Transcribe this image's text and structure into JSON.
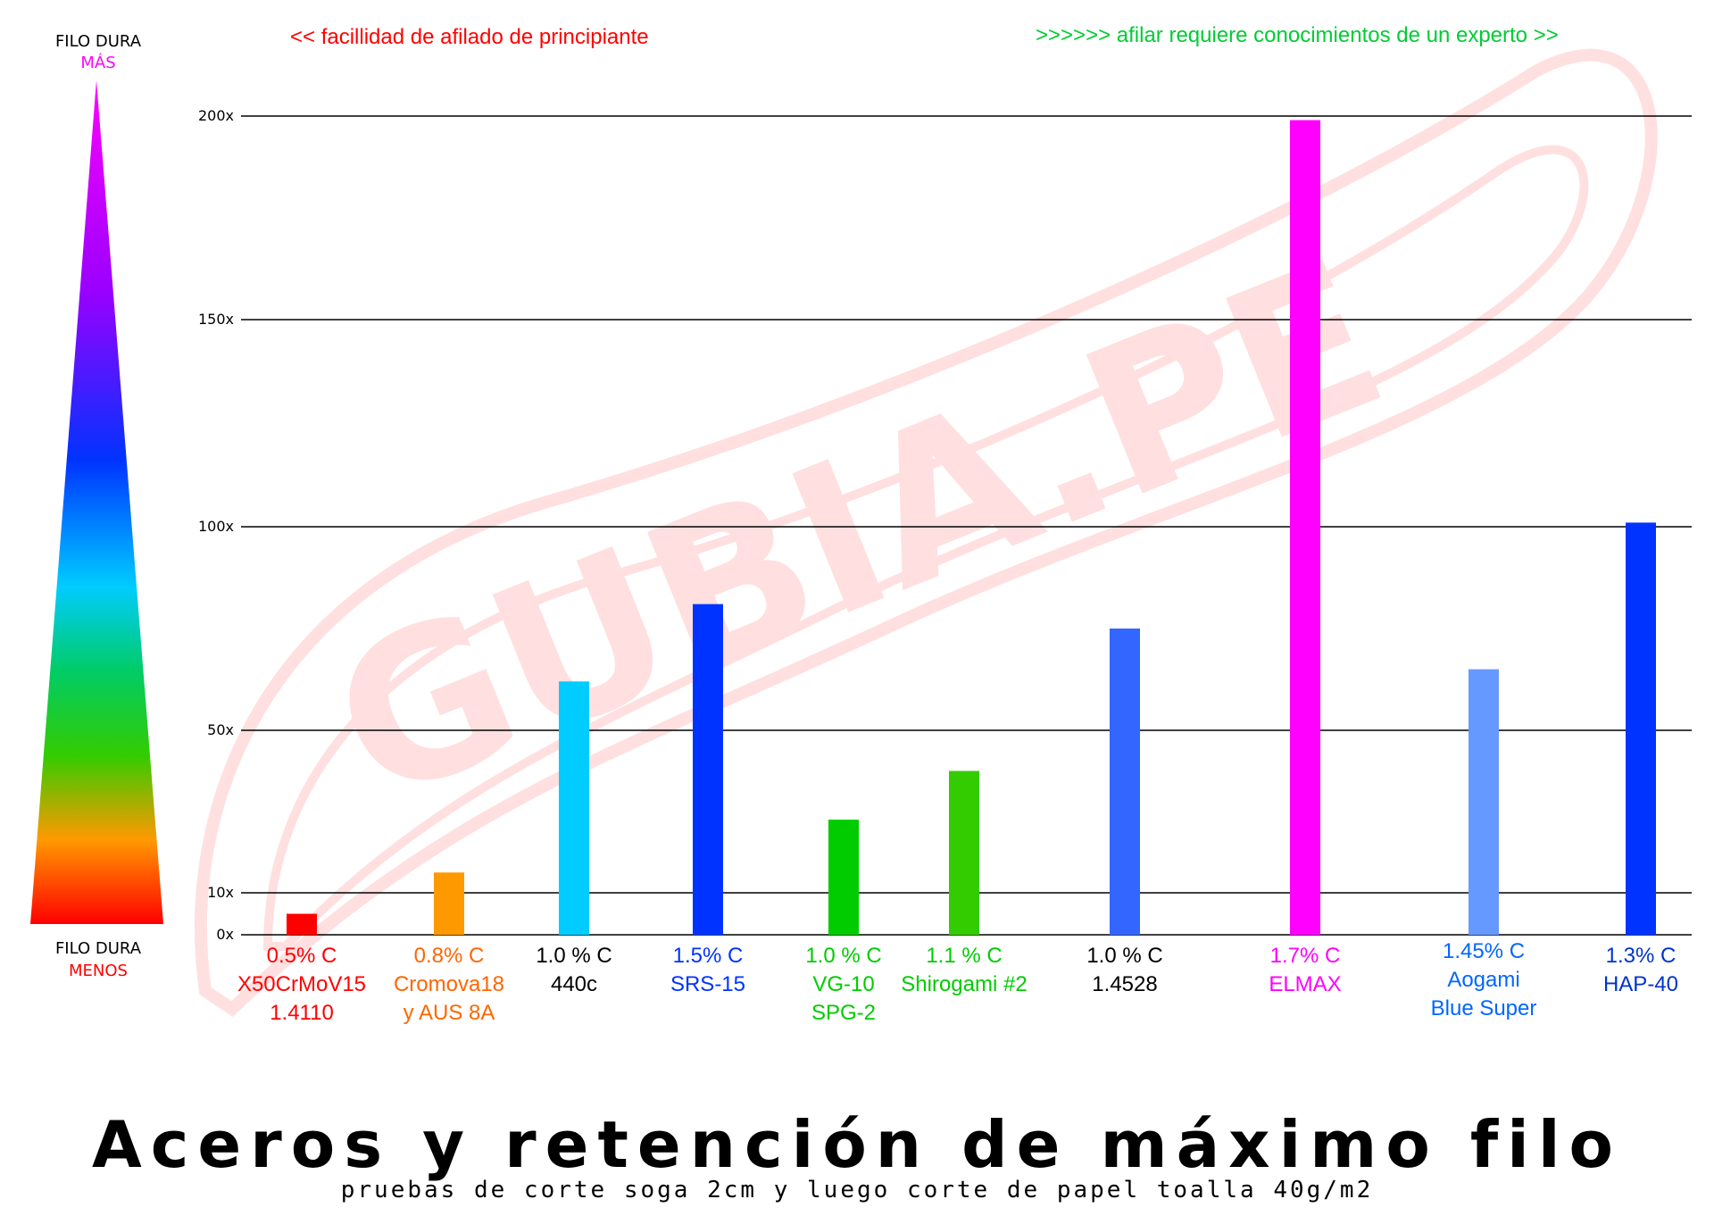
{
  "legend": {
    "top_line1": "FILO DURA",
    "top_line2": "MÁS",
    "bottom_line1": "FILO DURA",
    "bottom_line2": "MENOS"
  },
  "annotations": {
    "left": "<< facillidad de afilado de principiante",
    "right": ">>>>>> afilar requiere conocimientos de un experto >>"
  },
  "watermark": "GUBIA.PE",
  "chart_data": {
    "type": "bar",
    "title": "Aceros y retención de máximo filo",
    "subtitle": "pruebas de corte soga 2cm y luego corte de papel toalla 40g/m2",
    "xlabel": "",
    "ylabel": "",
    "yticks": [
      "0x",
      "10x",
      "50x",
      "100x",
      "150x",
      "200x"
    ],
    "ytick_values": [
      0,
      10,
      50,
      100,
      150,
      200
    ],
    "grid": true,
    "categories": [
      {
        "lines": [
          "0.5% C",
          "X50CrMoV15",
          "1.4110"
        ],
        "color": "#ff0000",
        "bar_color": "#ff0000",
        "value": 5
      },
      {
        "lines": [
          "0.8% C",
          "Cromova18",
          "y AUS 8A"
        ],
        "color": "#ff6600",
        "bar_color": "#ff9900",
        "value": 15
      },
      {
        "lines": [
          "1.0 % C",
          "440c"
        ],
        "color": "#000000",
        "bar_color": "#00ccff",
        "value": 62
      },
      {
        "lines": [
          "1.5% C",
          "SRS-15"
        ],
        "color": "#0033ff",
        "bar_color": "#0033ff",
        "value": 81
      },
      {
        "lines": [
          "1.0 % C",
          "VG-10",
          "SPG-2"
        ],
        "color": "#00cc00",
        "bar_color": "#00cc00",
        "value": 28
      },
      {
        "lines": [
          "1.1 % C",
          "Shirogami #2"
        ],
        "color": "#00cc00",
        "bar_color": "#33cc00",
        "value": 40
      },
      {
        "lines": [
          "1.0 % C",
          "1.4528"
        ],
        "color": "#000000",
        "bar_color": "#3366ff",
        "value": 75
      },
      {
        "lines": [
          "1.7% C",
          "ELMAX"
        ],
        "color": "#ff00ff",
        "bar_color": "#ff00ff",
        "value": 199
      },
      {
        "lines": [
          "1.45% C",
          "Aogami",
          "Blue Super"
        ],
        "color": "#0066ff",
        "bar_color": "#6699ff",
        "value": 65
      },
      {
        "lines": [
          "1.3% C",
          "HAP-40"
        ],
        "color": "#0033cc",
        "bar_color": "#0033ff",
        "value": 101
      }
    ],
    "ylim": [
      0,
      200
    ]
  }
}
